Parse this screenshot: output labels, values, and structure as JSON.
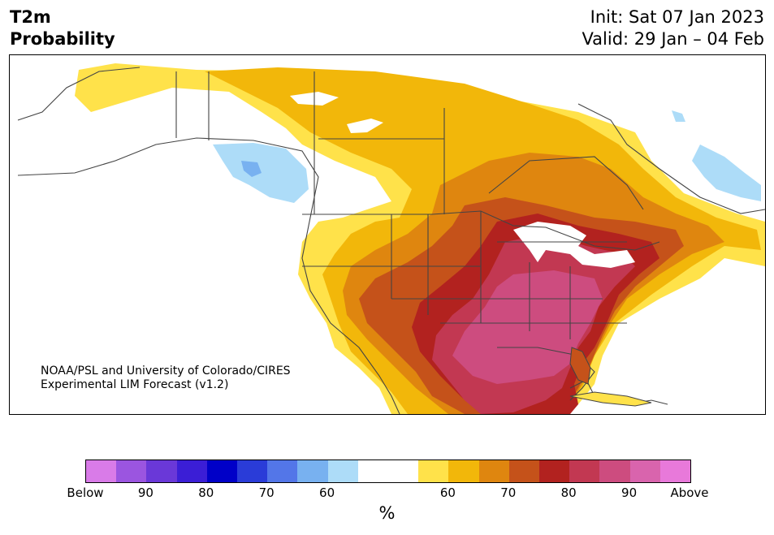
{
  "title": {
    "line1": "T2m",
    "line2": "Probability"
  },
  "info": {
    "init": "Init: Sat 07 Jan 2023",
    "valid": "Valid: 29 Jan – 04 Feb"
  },
  "credit": {
    "line1": "NOAA/PSL and University of Colorado/CIRES",
    "line2": "Experimental LIM Forecast (v1.2)"
  },
  "colorbar": {
    "colors": [
      "#d97be8",
      "#9b55e0",
      "#6a38d8",
      "#3b1ed6",
      "#0000c8",
      "#2a3cd8",
      "#5376e8",
      "#78b1f0",
      "#addcf8",
      "#ffffff",
      "#ffffff",
      "#ffe24a",
      "#f2b70a",
      "#df860f",
      "#c5521a",
      "#b2221f",
      "#c23852",
      "#cd4c7f",
      "#d964ad",
      "#e879da"
    ],
    "tick_labels": [
      "Below",
      "90",
      "80",
      "70",
      "60",
      "60",
      "70",
      "80",
      "90",
      "Above"
    ],
    "unit": "%"
  },
  "map_colors": {
    "prob_60_cold": "#addcf8",
    "prob_70_cold": "#78b1f0",
    "prob_60_warm": "#ffe24a",
    "prob_70_warm": "#f2b70a",
    "prob_80_warm": "#df860f",
    "prob_85_warm": "#c5521a",
    "prob_90_warm": "#b2221f",
    "prob_95_warm": "#c23852",
    "prob_97_warm": "#cd4c7f",
    "border": "#444444"
  }
}
